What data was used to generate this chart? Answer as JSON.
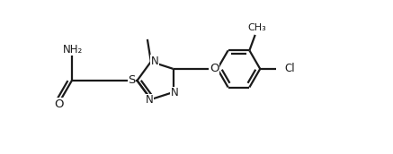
{
  "background_color": "#ffffff",
  "line_color": "#1a1a1a",
  "line_width": 1.6,
  "font_size": 8.5,
  "fig_width": 4.37,
  "fig_height": 1.72,
  "dpi": 100,
  "xlim": [
    0.0,
    5.5
  ],
  "ylim": [
    0.2,
    1.9
  ]
}
